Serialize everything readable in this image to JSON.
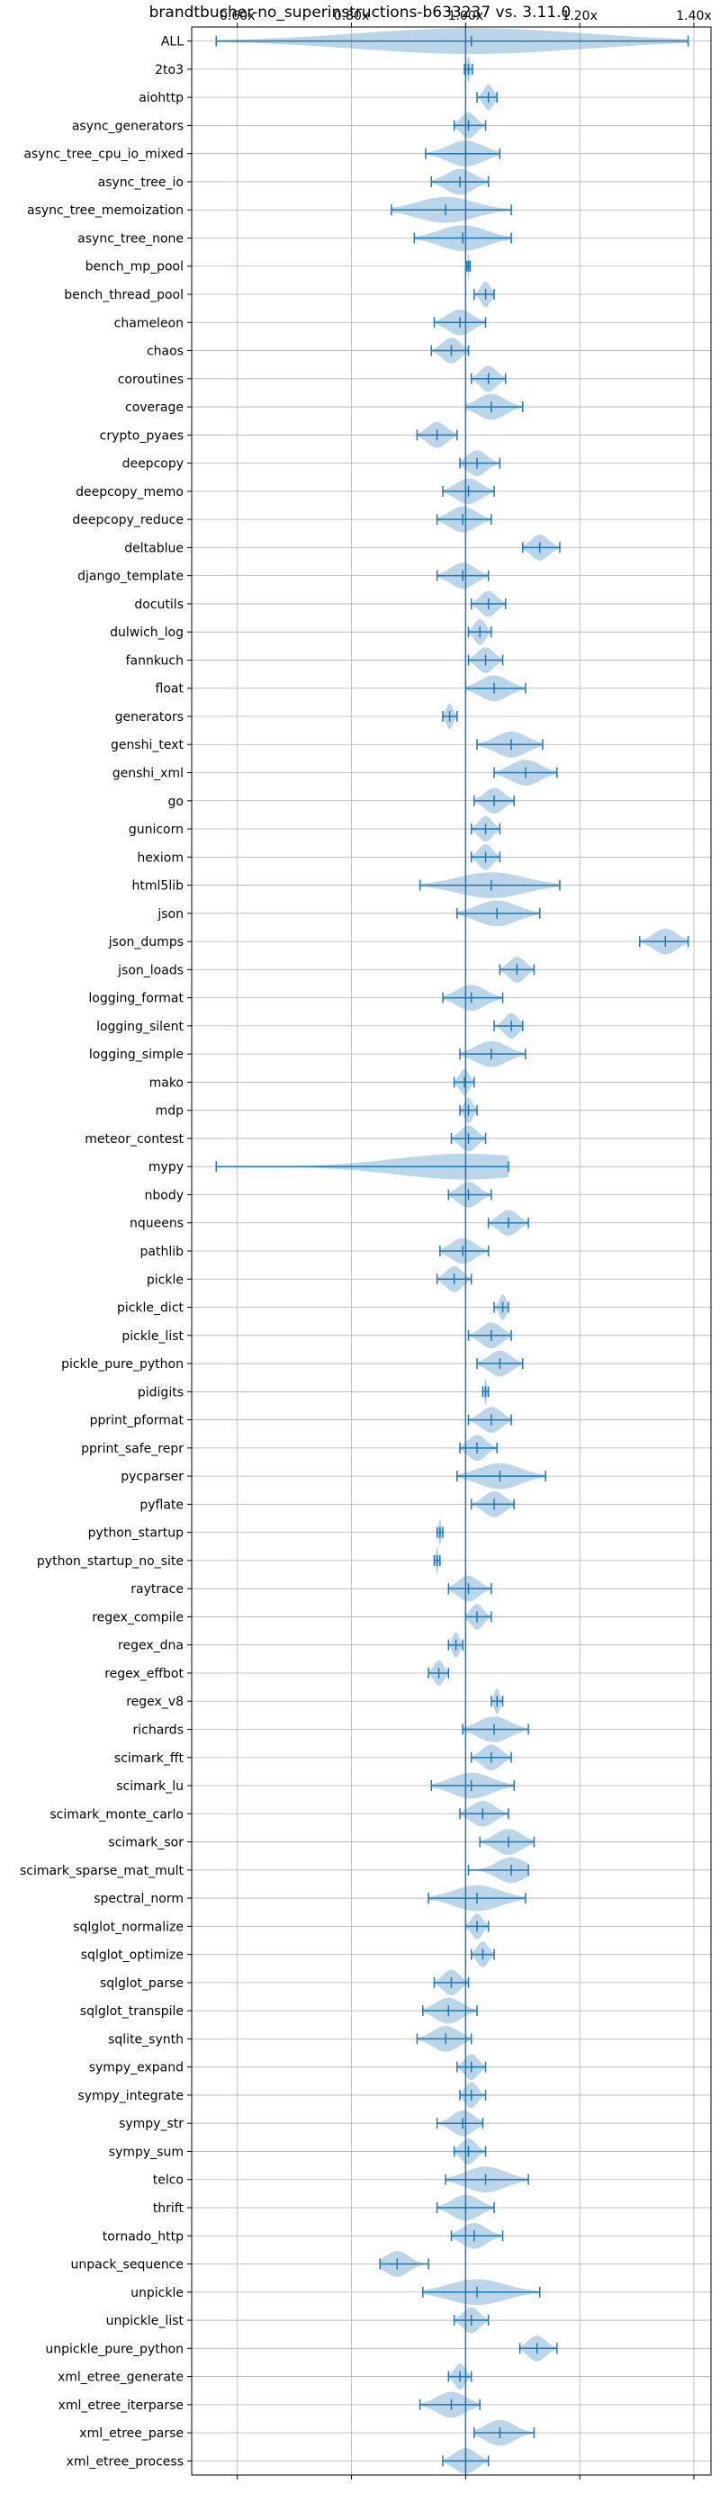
{
  "chart_data": {
    "type": "violin",
    "title": "brandtbucher-no_superinstructions-b633237 vs. 3.11.0",
    "orientation": "horizontal",
    "x_ticks": [
      "0.60x",
      "0.80x",
      "1.00x",
      "1.20x",
      "1.40x"
    ],
    "x_tick_values": [
      0.6,
      0.8,
      1.0,
      1.2,
      1.4
    ],
    "xlim": [
      0.52,
      1.43
    ],
    "reference_value": 1.0,
    "grid": true,
    "color": "#1f77b4",
    "benchmarks": [
      {
        "name": "ALL",
        "min": 0.563,
        "max": 1.39,
        "median": 1.01,
        "lo": 0.94,
        "hi": 1.08
      },
      {
        "name": "2to3",
        "min": 0.998,
        "max": 1.012,
        "median": 1.005,
        "lo": 0.998,
        "hi": 1.012
      },
      {
        "name": "aiohttp",
        "min": 1.02,
        "max": 1.055,
        "median": 1.04,
        "lo": 1.02,
        "hi": 1.055
      },
      {
        "name": "async_generators",
        "min": 0.98,
        "max": 1.035,
        "median": 1.005,
        "lo": 0.98,
        "hi": 1.035
      },
      {
        "name": "async_tree_cpu_io_mixed",
        "min": 0.93,
        "max": 1.06,
        "median": 1.0,
        "lo": 0.93,
        "hi": 1.06
      },
      {
        "name": "async_tree_io",
        "min": 0.94,
        "max": 1.04,
        "median": 0.99,
        "lo": 0.94,
        "hi": 1.04
      },
      {
        "name": "async_tree_memoization",
        "min": 0.87,
        "max": 1.08,
        "median": 0.965,
        "lo": 0.87,
        "hi": 1.08
      },
      {
        "name": "async_tree_none",
        "min": 0.91,
        "max": 1.08,
        "median": 0.995,
        "lo": 0.91,
        "hi": 1.08
      },
      {
        "name": "bench_mp_pool",
        "min": 1.002,
        "max": 1.008,
        "median": 1.005,
        "lo": 1.002,
        "hi": 1.008
      },
      {
        "name": "bench_thread_pool",
        "min": 1.015,
        "max": 1.05,
        "median": 1.035,
        "lo": 1.015,
        "hi": 1.05
      },
      {
        "name": "chameleon",
        "min": 0.945,
        "max": 1.035,
        "median": 0.99,
        "lo": 0.945,
        "hi": 1.035
      },
      {
        "name": "chaos",
        "min": 0.94,
        "max": 1.005,
        "median": 0.975,
        "lo": 0.94,
        "hi": 1.005
      },
      {
        "name": "coroutines",
        "min": 1.01,
        "max": 1.07,
        "median": 1.04,
        "lo": 1.01,
        "hi": 1.07
      },
      {
        "name": "coverage",
        "min": 1.0,
        "max": 1.1,
        "median": 1.045,
        "lo": 1.0,
        "hi": 1.1
      },
      {
        "name": "crypto_pyaes",
        "min": 0.915,
        "max": 0.985,
        "median": 0.95,
        "lo": 0.915,
        "hi": 0.985
      },
      {
        "name": "deepcopy",
        "min": 0.99,
        "max": 1.06,
        "median": 1.02,
        "lo": 0.99,
        "hi": 1.06
      },
      {
        "name": "deepcopy_memo",
        "min": 0.96,
        "max": 1.05,
        "median": 1.005,
        "lo": 0.96,
        "hi": 1.05
      },
      {
        "name": "deepcopy_reduce",
        "min": 0.95,
        "max": 1.045,
        "median": 0.995,
        "lo": 0.95,
        "hi": 1.045
      },
      {
        "name": "deltablue",
        "min": 1.1,
        "max": 1.165,
        "median": 1.13,
        "lo": 1.1,
        "hi": 1.165
      },
      {
        "name": "django_template",
        "min": 0.95,
        "max": 1.04,
        "median": 0.995,
        "lo": 0.95,
        "hi": 1.04
      },
      {
        "name": "docutils",
        "min": 1.01,
        "max": 1.07,
        "median": 1.04,
        "lo": 1.01,
        "hi": 1.07
      },
      {
        "name": "dulwich_log",
        "min": 1.005,
        "max": 1.045,
        "median": 1.025,
        "lo": 1.005,
        "hi": 1.045
      },
      {
        "name": "fannkuch",
        "min": 1.005,
        "max": 1.065,
        "median": 1.035,
        "lo": 1.005,
        "hi": 1.065
      },
      {
        "name": "float",
        "min": 1.0,
        "max": 1.105,
        "median": 1.05,
        "lo": 1.0,
        "hi": 1.105
      },
      {
        "name": "generators",
        "min": 0.96,
        "max": 0.985,
        "median": 0.972,
        "lo": 0.96,
        "hi": 0.985
      },
      {
        "name": "genshi_text",
        "min": 1.02,
        "max": 1.135,
        "median": 1.08,
        "lo": 1.02,
        "hi": 1.135
      },
      {
        "name": "genshi_xml",
        "min": 1.05,
        "max": 1.16,
        "median": 1.105,
        "lo": 1.05,
        "hi": 1.16
      },
      {
        "name": "go",
        "min": 1.015,
        "max": 1.085,
        "median": 1.05,
        "lo": 1.015,
        "hi": 1.085
      },
      {
        "name": "gunicorn",
        "min": 1.01,
        "max": 1.06,
        "median": 1.035,
        "lo": 1.01,
        "hi": 1.06
      },
      {
        "name": "hexiom",
        "min": 1.01,
        "max": 1.06,
        "median": 1.035,
        "lo": 1.01,
        "hi": 1.06
      },
      {
        "name": "html5lib",
        "min": 0.92,
        "max": 1.165,
        "median": 1.045,
        "lo": 0.92,
        "hi": 1.165
      },
      {
        "name": "json",
        "min": 0.985,
        "max": 1.13,
        "median": 1.055,
        "lo": 0.985,
        "hi": 1.13
      },
      {
        "name": "json_dumps",
        "min": 1.305,
        "max": 1.39,
        "median": 1.35,
        "lo": 1.305,
        "hi": 1.39
      },
      {
        "name": "json_loads",
        "min": 1.06,
        "max": 1.12,
        "median": 1.09,
        "lo": 1.06,
        "hi": 1.12
      },
      {
        "name": "logging_format",
        "min": 0.96,
        "max": 1.065,
        "median": 1.01,
        "lo": 0.96,
        "hi": 1.065
      },
      {
        "name": "logging_silent",
        "min": 1.05,
        "max": 1.1,
        "median": 1.08,
        "lo": 1.05,
        "hi": 1.1
      },
      {
        "name": "logging_simple",
        "min": 0.99,
        "max": 1.105,
        "median": 1.045,
        "lo": 0.99,
        "hi": 1.105
      },
      {
        "name": "mako",
        "min": 0.98,
        "max": 1.015,
        "median": 0.998,
        "lo": 0.98,
        "hi": 1.015
      },
      {
        "name": "mdp",
        "min": 0.99,
        "max": 1.02,
        "median": 1.005,
        "lo": 0.99,
        "hi": 1.02
      },
      {
        "name": "meteor_contest",
        "min": 0.975,
        "max": 1.035,
        "median": 1.005,
        "lo": 0.975,
        "hi": 1.035
      },
      {
        "name": "mypy",
        "min": 0.563,
        "max": 1.075,
        "median": 1.0,
        "lo": 0.563,
        "hi": 1.075
      },
      {
        "name": "nbody",
        "min": 0.97,
        "max": 1.045,
        "median": 1.005,
        "lo": 0.97,
        "hi": 1.045
      },
      {
        "name": "nqueens",
        "min": 1.04,
        "max": 1.11,
        "median": 1.075,
        "lo": 1.04,
        "hi": 1.11
      },
      {
        "name": "pathlib",
        "min": 0.955,
        "max": 1.04,
        "median": 0.995,
        "lo": 0.955,
        "hi": 1.04
      },
      {
        "name": "pickle",
        "min": 0.95,
        "max": 1.01,
        "median": 0.98,
        "lo": 0.95,
        "hi": 1.01
      },
      {
        "name": "pickle_dict",
        "min": 1.05,
        "max": 1.075,
        "median": 1.065,
        "lo": 1.05,
        "hi": 1.075
      },
      {
        "name": "pickle_list",
        "min": 1.005,
        "max": 1.08,
        "median": 1.045,
        "lo": 1.005,
        "hi": 1.08
      },
      {
        "name": "pickle_pure_python",
        "min": 1.02,
        "max": 1.1,
        "median": 1.06,
        "lo": 1.02,
        "hi": 1.1
      },
      {
        "name": "pidigits",
        "min": 1.03,
        "max": 1.04,
        "median": 1.035,
        "lo": 1.03,
        "hi": 1.04
      },
      {
        "name": "pprint_pformat",
        "min": 1.005,
        "max": 1.08,
        "median": 1.045,
        "lo": 1.005,
        "hi": 1.08
      },
      {
        "name": "pprint_safe_repr",
        "min": 0.99,
        "max": 1.055,
        "median": 1.02,
        "lo": 0.99,
        "hi": 1.055
      },
      {
        "name": "pycparser",
        "min": 0.985,
        "max": 1.14,
        "median": 1.06,
        "lo": 0.985,
        "hi": 1.14
      },
      {
        "name": "pyflate",
        "min": 1.01,
        "max": 1.085,
        "median": 1.05,
        "lo": 1.01,
        "hi": 1.085
      },
      {
        "name": "python_startup",
        "min": 0.95,
        "max": 0.96,
        "median": 0.955,
        "lo": 0.95,
        "hi": 0.96
      },
      {
        "name": "python_startup_no_site",
        "min": 0.945,
        "max": 0.955,
        "median": 0.95,
        "lo": 0.945,
        "hi": 0.955
      },
      {
        "name": "raytrace",
        "min": 0.97,
        "max": 1.045,
        "median": 1.005,
        "lo": 0.97,
        "hi": 1.045
      },
      {
        "name": "regex_compile",
        "min": 1.0,
        "max": 1.045,
        "median": 1.02,
        "lo": 1.0,
        "hi": 1.045
      },
      {
        "name": "regex_dna",
        "min": 0.97,
        "max": 0.995,
        "median": 0.983,
        "lo": 0.97,
        "hi": 0.995
      },
      {
        "name": "regex_effbot",
        "min": 0.935,
        "max": 0.97,
        "median": 0.953,
        "lo": 0.935,
        "hi": 0.97
      },
      {
        "name": "regex_v8",
        "min": 1.045,
        "max": 1.065,
        "median": 1.055,
        "lo": 1.045,
        "hi": 1.065
      },
      {
        "name": "richards",
        "min": 0.995,
        "max": 1.11,
        "median": 1.05,
        "lo": 0.995,
        "hi": 1.11
      },
      {
        "name": "scimark_fft",
        "min": 1.01,
        "max": 1.08,
        "median": 1.045,
        "lo": 1.01,
        "hi": 1.08
      },
      {
        "name": "scimark_lu",
        "min": 0.94,
        "max": 1.085,
        "median": 1.01,
        "lo": 0.94,
        "hi": 1.085
      },
      {
        "name": "scimark_monte_carlo",
        "min": 0.99,
        "max": 1.075,
        "median": 1.03,
        "lo": 0.99,
        "hi": 1.075
      },
      {
        "name": "scimark_sor",
        "min": 1.025,
        "max": 1.12,
        "median": 1.075,
        "lo": 1.025,
        "hi": 1.12
      },
      {
        "name": "scimark_sparse_mat_mult",
        "min": 1.005,
        "max": 1.11,
        "median": 1.08,
        "lo": 1.005,
        "hi": 1.11
      },
      {
        "name": "spectral_norm",
        "min": 0.935,
        "max": 1.105,
        "median": 1.02,
        "lo": 0.935,
        "hi": 1.105
      },
      {
        "name": "sqlglot_normalize",
        "min": 1.0,
        "max": 1.04,
        "median": 1.02,
        "lo": 1.0,
        "hi": 1.04
      },
      {
        "name": "sqlglot_optimize",
        "min": 1.01,
        "max": 1.05,
        "median": 1.03,
        "lo": 1.01,
        "hi": 1.05
      },
      {
        "name": "sqlglot_parse",
        "min": 0.945,
        "max": 1.005,
        "median": 0.975,
        "lo": 0.945,
        "hi": 1.005
      },
      {
        "name": "sqlglot_transpile",
        "min": 0.925,
        "max": 1.02,
        "median": 0.97,
        "lo": 0.925,
        "hi": 1.02
      },
      {
        "name": "sqlite_synth",
        "min": 0.915,
        "max": 1.01,
        "median": 0.965,
        "lo": 0.915,
        "hi": 1.01
      },
      {
        "name": "sympy_expand",
        "min": 0.985,
        "max": 1.035,
        "median": 1.01,
        "lo": 0.985,
        "hi": 1.035
      },
      {
        "name": "sympy_integrate",
        "min": 0.99,
        "max": 1.035,
        "median": 1.01,
        "lo": 0.99,
        "hi": 1.035
      },
      {
        "name": "sympy_str",
        "min": 0.95,
        "max": 1.03,
        "median": 0.995,
        "lo": 0.95,
        "hi": 1.03
      },
      {
        "name": "sympy_sum",
        "min": 0.98,
        "max": 1.035,
        "median": 1.005,
        "lo": 0.98,
        "hi": 1.035
      },
      {
        "name": "telco",
        "min": 0.965,
        "max": 1.11,
        "median": 1.035,
        "lo": 0.965,
        "hi": 1.11
      },
      {
        "name": "thrift",
        "min": 0.95,
        "max": 1.05,
        "median": 1.0,
        "lo": 0.95,
        "hi": 1.05
      },
      {
        "name": "tornado_http",
        "min": 0.975,
        "max": 1.065,
        "median": 1.015,
        "lo": 0.975,
        "hi": 1.065
      },
      {
        "name": "unpack_sequence",
        "min": 0.85,
        "max": 0.935,
        "median": 0.88,
        "lo": 0.85,
        "hi": 0.935
      },
      {
        "name": "unpickle",
        "min": 0.925,
        "max": 1.13,
        "median": 1.02,
        "lo": 0.925,
        "hi": 1.13
      },
      {
        "name": "unpickle_list",
        "min": 0.98,
        "max": 1.04,
        "median": 1.01,
        "lo": 0.98,
        "hi": 1.04
      },
      {
        "name": "unpickle_pure_python",
        "min": 1.095,
        "max": 1.16,
        "median": 1.125,
        "lo": 1.095,
        "hi": 1.16
      },
      {
        "name": "xml_etree_generate",
        "min": 0.97,
        "max": 1.01,
        "median": 0.99,
        "lo": 0.97,
        "hi": 1.01
      },
      {
        "name": "xml_etree_iterparse",
        "min": 0.92,
        "max": 1.025,
        "median": 0.975,
        "lo": 0.92,
        "hi": 1.025
      },
      {
        "name": "xml_etree_parse",
        "min": 1.015,
        "max": 1.12,
        "median": 1.06,
        "lo": 1.015,
        "hi": 1.12
      },
      {
        "name": "xml_etree_process",
        "min": 0.96,
        "max": 1.04,
        "median": 1.0,
        "lo": 0.96,
        "hi": 1.04
      }
    ]
  }
}
